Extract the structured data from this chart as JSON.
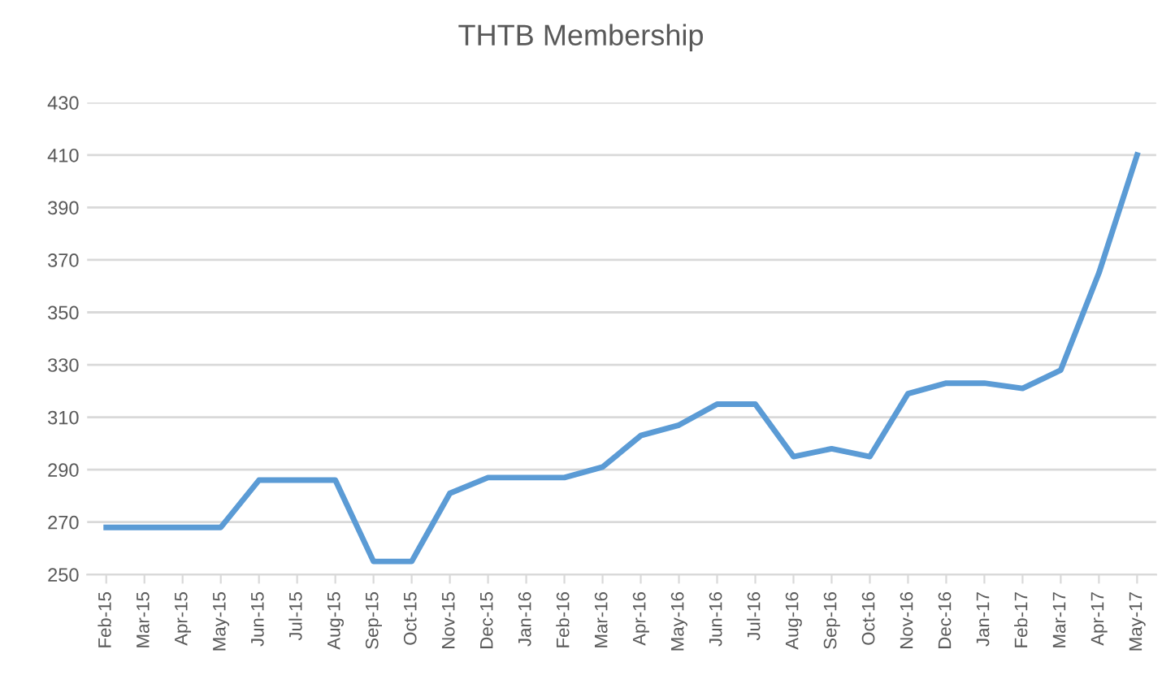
{
  "chart_data": {
    "type": "line",
    "title": "THTB Membership",
    "categories": [
      "Feb-15",
      "Mar-15",
      "Apr-15",
      "May-15",
      "Jun-15",
      "Jul-15",
      "Aug-15",
      "Sep-15",
      "Oct-15",
      "Nov-15",
      "Dec-15",
      "Jan-16",
      "Feb-16",
      "Mar-16",
      "Apr-16",
      "May-16",
      "Jun-16",
      "Jul-16",
      "Aug-16",
      "Sep-16",
      "Oct-16",
      "Nov-16",
      "Dec-16",
      "Jan-17",
      "Feb-17",
      "Mar-17",
      "Apr-17",
      "May-17"
    ],
    "series": [
      {
        "color": "#5b9bd5",
        "values": [
          268,
          268,
          268,
          268,
          286,
          286,
          286,
          255,
          255,
          281,
          287,
          287,
          287,
          291,
          303,
          307,
          315,
          315,
          295,
          298,
          295,
          319,
          323,
          323,
          321,
          328,
          365,
          410
        ]
      }
    ],
    "ylim": [
      250,
      430
    ],
    "yticks": [
      250,
      270,
      290,
      310,
      330,
      350,
      370,
      390,
      410,
      430
    ],
    "grid": "y",
    "legend": false,
    "marker": "none",
    "line_style": "solid"
  }
}
